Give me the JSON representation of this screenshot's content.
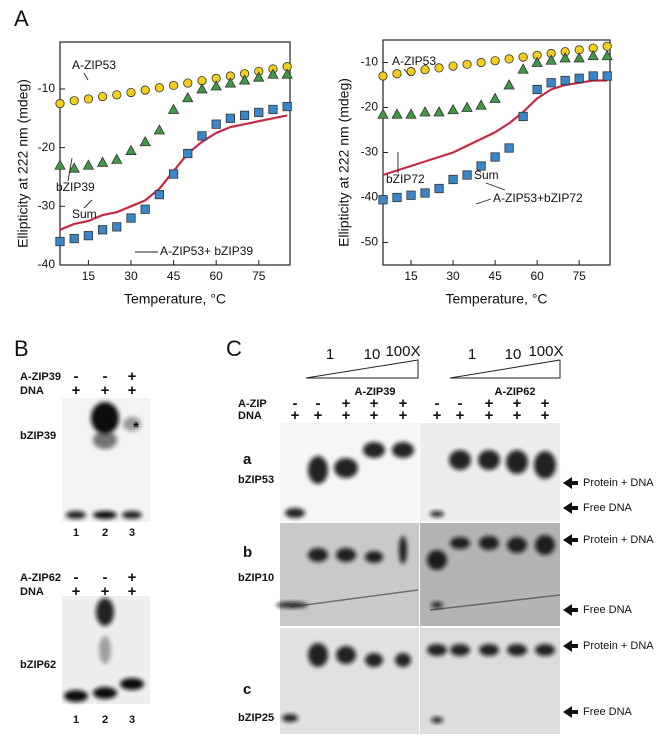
{
  "panel_labels": [
    "A",
    "B",
    "C"
  ],
  "chart_data": [
    {
      "type": "line",
      "x_label": "Temperature, °C",
      "y_label": "Ellipticity at 222 nm (mdeg)",
      "xlim": [
        5,
        86
      ],
      "xticks": [
        15,
        30,
        45,
        60,
        75
      ],
      "ylim": [
        -40,
        -2
      ],
      "yticks": [
        -10,
        -20,
        -30,
        -40
      ],
      "x": [
        5,
        10,
        15,
        20,
        25,
        30,
        35,
        40,
        45,
        50,
        55,
        60,
        65,
        70,
        75,
        80,
        85
      ],
      "series": [
        {
          "name": "A-ZIP53",
          "color": "#f2cf1d",
          "marker": "circle",
          "values": [
            -12.5,
            -12,
            -11.7,
            -11.3,
            -11,
            -10.6,
            -10.2,
            -9.8,
            -9.4,
            -9,
            -8.6,
            -8.2,
            -7.8,
            -7.4,
            -7,
            -6.6,
            -6.2
          ]
        },
        {
          "name": "bZIP39",
          "color": "#3f9a45",
          "marker": "triangle",
          "values": [
            -23,
            -23.5,
            -23,
            -22.5,
            -22,
            -20.5,
            -19,
            -17,
            -13.5,
            -11.5,
            -10,
            -9.5,
            -9,
            -8.5,
            -8,
            -7.5,
            -7.5
          ]
        },
        {
          "name": "Sum",
          "color": "#c42a45",
          "marker": "none",
          "values": [
            -34,
            -33,
            -32.5,
            -31.5,
            -31,
            -30,
            -29,
            -27,
            -24,
            -21,
            -19,
            -17.5,
            -16.5,
            -16,
            -15.5,
            -15,
            -14.5
          ]
        },
        {
          "name": "A-ZIP53+ bZIP39",
          "color": "#3b86c8",
          "marker": "square",
          "values": [
            -36,
            -35.5,
            -35,
            -34,
            -33.5,
            -32,
            -30.5,
            -28,
            -24.5,
            -21,
            -18,
            -16,
            -15,
            -14.5,
            -14,
            -13.5,
            -13
          ]
        }
      ]
    },
    {
      "type": "line",
      "x_label": "Temperature, °C",
      "y_label": "Ellipticity at 222 nm (mdeg)",
      "xlim": [
        5,
        86
      ],
      "xticks": [
        15,
        30,
        45,
        60,
        75
      ],
      "ylim": [
        -55,
        -5
      ],
      "yticks": [
        -10,
        -20,
        -30,
        -40,
        -50
      ],
      "x": [
        5,
        10,
        15,
        20,
        25,
        30,
        35,
        40,
        45,
        50,
        55,
        60,
        65,
        70,
        75,
        80,
        85
      ],
      "series": [
        {
          "name": "A-ZIP53",
          "color": "#f2cf1d",
          "marker": "circle",
          "values": [
            -13,
            -12.5,
            -12,
            -11.6,
            -11.2,
            -10.8,
            -10.4,
            -10,
            -9.6,
            -9.2,
            -8.8,
            -8.4,
            -8,
            -7.6,
            -7.2,
            -6.8,
            -6.4
          ]
        },
        {
          "name": "bZIP72",
          "color": "#3f9a45",
          "marker": "triangle",
          "values": [
            -21.5,
            -21.5,
            -21.5,
            -21,
            -21,
            -20.5,
            -20,
            -19.5,
            -18,
            -15,
            -11.5,
            -10,
            -9.5,
            -9,
            -9,
            -8.5,
            -8.5
          ]
        },
        {
          "name": "Sum",
          "color": "#c42a45",
          "marker": "none",
          "values": [
            -35,
            -34,
            -33,
            -32,
            -31,
            -30,
            -28.5,
            -27,
            -25.5,
            -23.5,
            -21,
            -18,
            -16,
            -15,
            -14.5,
            -14,
            -14
          ]
        },
        {
          "name": "A-ZIP53+bZIP72",
          "color": "#3b86c8",
          "marker": "square",
          "values": [
            -40.5,
            -40,
            -39.5,
            -39,
            -38,
            -36,
            -35,
            -33,
            -31,
            -29,
            -22,
            -16,
            -14.5,
            -14,
            -13.5,
            -13,
            -13
          ]
        }
      ]
    }
  ],
  "panel_b": {
    "gels": [
      {
        "rows": [
          {
            "label": "A-ZIP39",
            "signs": [
              "-",
              "-",
              "+"
            ]
          },
          {
            "label": "DNA",
            "signs": [
              "+",
              "+",
              "+"
            ]
          }
        ],
        "protein": "bZIP39",
        "lanes": [
          "1",
          "2",
          "3"
        ],
        "asterisk": "*"
      },
      {
        "rows": [
          {
            "label": "A-ZIP62",
            "signs": [
              "-",
              "-",
              "+"
            ]
          },
          {
            "label": "DNA",
            "signs": [
              "+",
              "+",
              "+"
            ]
          }
        ],
        "protein": "bZIP62",
        "lanes": [
          "1",
          "2",
          "3"
        ]
      }
    ]
  },
  "panel_c": {
    "titrations": [
      {
        "doses": [
          "1",
          "10",
          "100X"
        ],
        "name": "A-ZIP39"
      },
      {
        "doses": [
          "1",
          "10",
          "100X"
        ],
        "name": "A-ZIP62"
      }
    ],
    "rows": [
      {
        "label": "A-ZIP",
        "signs": [
          "-",
          "-",
          "+",
          "+",
          "+",
          "-",
          "-",
          "+",
          "+",
          "+"
        ]
      },
      {
        "label": "DNA",
        "signs": [
          "+",
          "+",
          "+",
          "+",
          "+",
          "+",
          "+",
          "+",
          "+",
          "+"
        ]
      }
    ],
    "gels": [
      {
        "letter": "a",
        "protein": "bZIP53",
        "bound": "Protein + DNA",
        "free": "Free DNA"
      },
      {
        "letter": "b",
        "protein": "bZIP10",
        "bound": "Protein + DNA",
        "free": "Free DNA"
      },
      {
        "letter": "c",
        "protein": "bZIP25",
        "bound": "Protein + DNA",
        "free": "Free DNA"
      }
    ]
  }
}
